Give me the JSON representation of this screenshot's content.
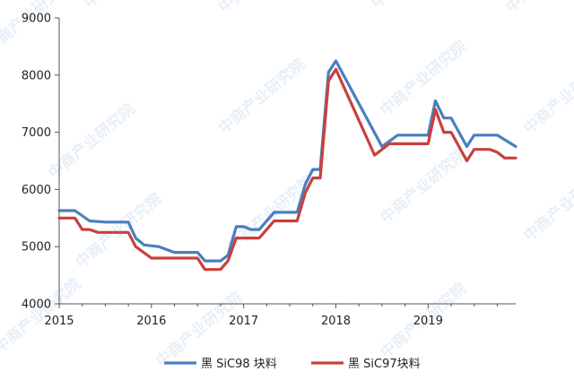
{
  "watermark": {
    "text": "中商产业研究院"
  },
  "chart_data": {
    "type": "line",
    "title": "",
    "xlabel": "",
    "ylabel": "",
    "xlim": [
      2015,
      2019.95
    ],
    "ylim": [
      4000,
      9000
    ],
    "y_ticks": [
      4000,
      5000,
      6000,
      7000,
      8000,
      9000
    ],
    "x_ticks": [
      2015,
      2016,
      2017,
      2018,
      2019
    ],
    "grid": false,
    "legend_position": "bottom",
    "series": [
      {
        "name": "黑 SiC98 块料",
        "color": "#4a7fc1",
        "points": [
          [
            2015.0,
            5630
          ],
          [
            2015.17,
            5630
          ],
          [
            2015.33,
            5450
          ],
          [
            2015.5,
            5430
          ],
          [
            2015.75,
            5430
          ],
          [
            2015.83,
            5150
          ],
          [
            2015.92,
            5030
          ],
          [
            2016.08,
            5000
          ],
          [
            2016.25,
            4900
          ],
          [
            2016.5,
            4900
          ],
          [
            2016.58,
            4750
          ],
          [
            2016.75,
            4750
          ],
          [
            2016.83,
            4850
          ],
          [
            2016.92,
            5350
          ],
          [
            2017.0,
            5350
          ],
          [
            2017.08,
            5300
          ],
          [
            2017.17,
            5300
          ],
          [
            2017.33,
            5600
          ],
          [
            2017.58,
            5600
          ],
          [
            2017.67,
            6100
          ],
          [
            2017.75,
            6350
          ],
          [
            2017.83,
            6350
          ],
          [
            2017.92,
            8050
          ],
          [
            2018.0,
            8250
          ],
          [
            2018.5,
            6750
          ],
          [
            2018.67,
            6950
          ],
          [
            2019.0,
            6950
          ],
          [
            2019.08,
            7550
          ],
          [
            2019.17,
            7250
          ],
          [
            2019.25,
            7250
          ],
          [
            2019.42,
            6750
          ],
          [
            2019.5,
            6950
          ],
          [
            2019.75,
            6950
          ],
          [
            2019.83,
            6870
          ],
          [
            2019.95,
            6750
          ]
        ]
      },
      {
        "name": "黑 SiC97块料",
        "color": "#c8413c",
        "points": [
          [
            2015.0,
            5500
          ],
          [
            2015.17,
            5500
          ],
          [
            2015.25,
            5300
          ],
          [
            2015.33,
            5300
          ],
          [
            2015.42,
            5250
          ],
          [
            2015.75,
            5250
          ],
          [
            2015.83,
            5000
          ],
          [
            2016.0,
            4800
          ],
          [
            2016.5,
            4800
          ],
          [
            2016.58,
            4600
          ],
          [
            2016.75,
            4600
          ],
          [
            2016.83,
            4750
          ],
          [
            2016.92,
            5150
          ],
          [
            2017.17,
            5150
          ],
          [
            2017.33,
            5450
          ],
          [
            2017.58,
            5450
          ],
          [
            2017.67,
            5950
          ],
          [
            2017.75,
            6200
          ],
          [
            2017.83,
            6200
          ],
          [
            2017.92,
            7900
          ],
          [
            2018.0,
            8100
          ],
          [
            2018.42,
            6600
          ],
          [
            2018.58,
            6800
          ],
          [
            2019.0,
            6800
          ],
          [
            2019.08,
            7400
          ],
          [
            2019.17,
            7000
          ],
          [
            2019.25,
            7000
          ],
          [
            2019.42,
            6500
          ],
          [
            2019.5,
            6700
          ],
          [
            2019.67,
            6700
          ],
          [
            2019.75,
            6650
          ],
          [
            2019.83,
            6550
          ],
          [
            2019.95,
            6550
          ]
        ]
      }
    ]
  }
}
